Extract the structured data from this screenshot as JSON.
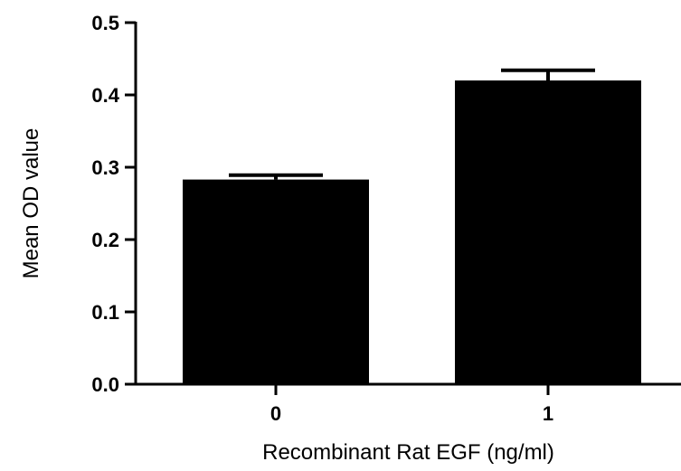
{
  "chart_data": {
    "type": "bar",
    "title": "",
    "xlabel": "Recombinant Rat EGF (ng/ml)",
    "ylabel": "Mean OD value",
    "categories": [
      "0",
      "1"
    ],
    "values": [
      0.283,
      0.42
    ],
    "error_upper": [
      0.289,
      0.434
    ],
    "ylim": [
      0.0,
      0.5
    ],
    "yticks": [
      "0.0",
      "0.1",
      "0.2",
      "0.3",
      "0.4",
      "0.5"
    ],
    "bar_color": "#000000",
    "grid": false,
    "legend": "none"
  }
}
